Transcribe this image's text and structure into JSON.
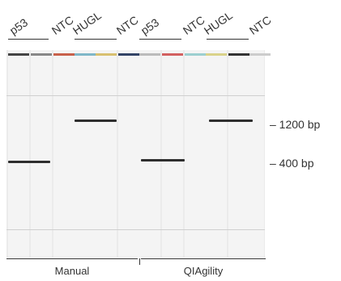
{
  "lane_labels": [
    "p53",
    "NTC",
    "HUGL",
    "NTC",
    "p53",
    "NTC",
    "HUGL",
    "NTC"
  ],
  "markers": [
    {
      "label": "– 1200 bp"
    },
    {
      "label": "– 400 bp"
    }
  ],
  "groups": [
    "Manual",
    "QIAgility"
  ]
}
